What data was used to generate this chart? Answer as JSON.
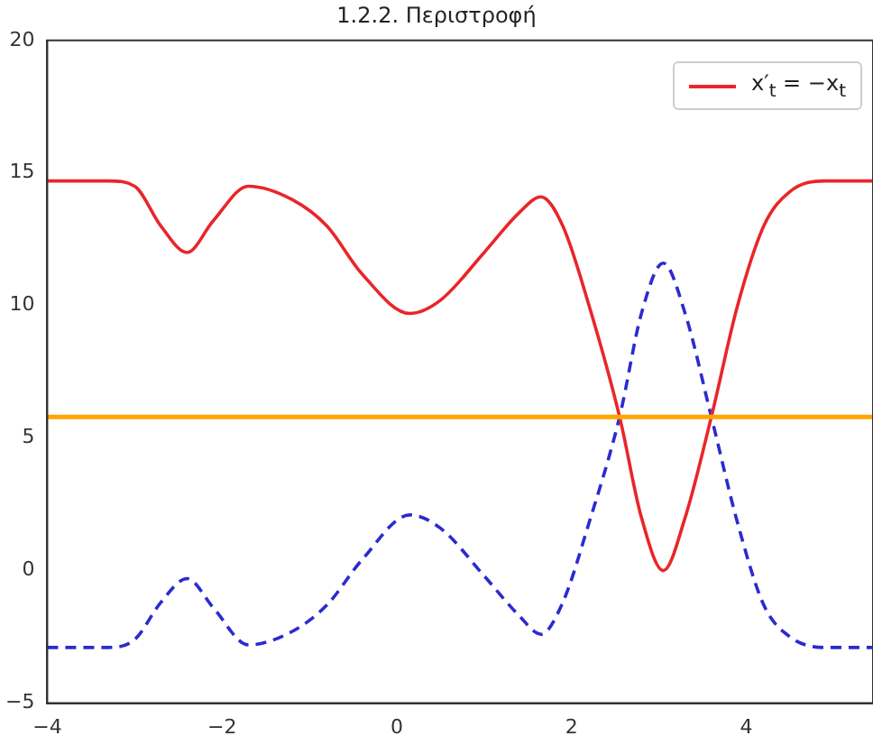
{
  "chart_data": {
    "type": "line",
    "title": "1.2.2. Περιστροφή",
    "xlim": [
      -4,
      5.45
    ],
    "xticks": [
      -4,
      -2,
      0,
      2,
      4
    ],
    "ylim": [
      -5,
      20
    ],
    "yticks": [
      -5,
      0,
      5,
      10,
      15,
      20
    ],
    "grid": false,
    "legend": "top right",
    "marker": "none",
    "x": [
      -4,
      -3.3,
      -3.0,
      -2.7,
      -2.4,
      -2.1,
      -1.7,
      -1.2,
      -0.8,
      -0.4,
      0.15,
      0.5,
      1.0,
      1.4,
      1.65,
      1.9,
      2.2,
      2.55,
      2.8,
      3.05,
      3.3,
      3.6,
      3.9,
      4.2,
      4.5,
      4.9,
      5.45
    ],
    "series": [
      {
        "name": "x′$_{t}$ = −x$_{t}$",
        "color": "#e8262b",
        "line_style": "solid",
        "values": [
          14.7,
          14.7,
          14.5,
          13,
          12.0,
          13.2,
          14.5,
          14.0,
          13.0,
          11.2,
          9.7,
          10.2,
          12.0,
          13.5,
          14.1,
          13,
          10,
          5.8,
          2,
          0,
          2,
          5.8,
          10,
          13,
          14.3,
          14.7,
          14.7
        ]
      },
      {
        "color": "#2b2bd0",
        "line_style": "dashed",
        "values": [
          -2.9,
          -2.9,
          -2.6,
          -1.2,
          -0.3,
          -1.4,
          -2.8,
          -2.3,
          -1.3,
          0.4,
          2.1,
          1.6,
          -0.2,
          -1.7,
          -2.4,
          -1.2,
          1.8,
          5.8,
          9.7,
          11.6,
          9.7,
          5.8,
          1.8,
          -1.3,
          -2.5,
          -2.9,
          -2.9
        ]
      }
    ],
    "ref_lines": [
      {
        "axis": "y",
        "value": 5.8,
        "color": "#ffa500"
      }
    ]
  }
}
